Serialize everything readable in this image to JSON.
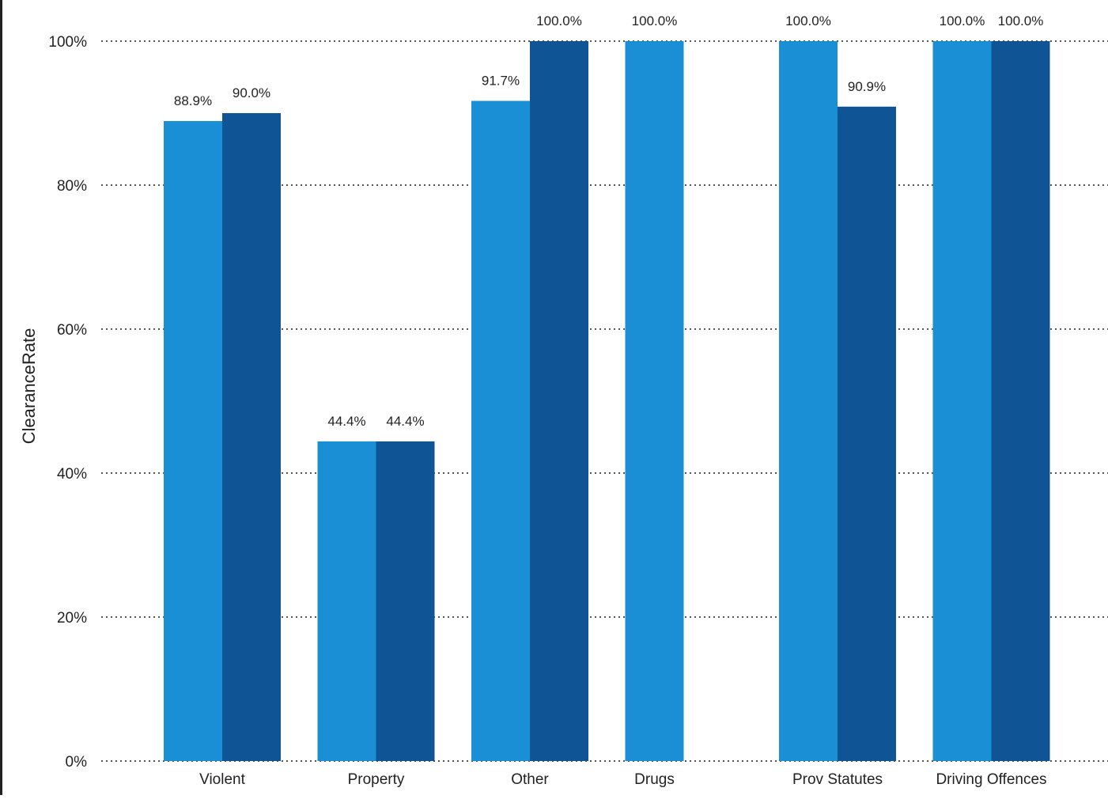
{
  "chart_data": {
    "type": "bar",
    "title": "",
    "xlabel": "",
    "ylabel": "ClearanceRate",
    "ylim": [
      0,
      100
    ],
    "yticks": [
      "0%",
      "20%",
      "40%",
      "60%",
      "80%",
      "100%"
    ],
    "ytick_values": [
      0,
      20,
      40,
      60,
      80,
      100
    ],
    "grid": true,
    "categories": [
      "Violent",
      "Property",
      "Other",
      "Drugs",
      "Prov Statutes",
      "Driving Offences"
    ],
    "series": [
      {
        "color": "#1a8fd6",
        "values": [
          88.9,
          44.4,
          91.7,
          100.0,
          100.0,
          100.0
        ],
        "labels": [
          "88.9%",
          "44.4%",
          "91.7%",
          "100.0%",
          "100.0%",
          "100.0%"
        ]
      },
      {
        "color": "#0f5596",
        "values": [
          90.0,
          44.4,
          100.0,
          null,
          90.9,
          100.0
        ],
        "labels": [
          "90.0%",
          "44.4%",
          "100.0%",
          null,
          "90.9%",
          "100.0%"
        ]
      }
    ],
    "colors": {
      "grid": "#555555",
      "text": "#222222"
    }
  }
}
